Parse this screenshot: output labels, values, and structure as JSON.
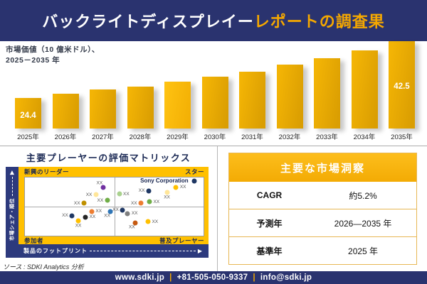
{
  "header": {
    "title_white": "バックライトディスプレイー",
    "title_accent": "レポートの調査果"
  },
  "bar_chart": {
    "label_line1": "市場価値（10 億米ドル）、",
    "label_line2": "2025－2035 年"
  },
  "chart_data": [
    {
      "type": "bar",
      "title": "市場価値（10 億米ドル）、2025－2035 年",
      "categories": [
        "2025年",
        "2026年",
        "2027年",
        "2028年",
        "2029年",
        "2030年",
        "2031年",
        "2032年",
        "2033年",
        "2034年",
        "2035年"
      ],
      "values": [
        24.4,
        25.8,
        27.1,
        28.0,
        29.6,
        31.2,
        32.8,
        35.0,
        37.1,
        39.6,
        42.5
      ],
      "value_labels_shown": {
        "0": "24.4",
        "10": "42.5"
      },
      "ylabel": "10億米ドル",
      "bar_color": "#E3A607",
      "grid": false
    },
    {
      "type": "scatter",
      "title": "主要プレーヤーの評価マトリックス",
      "xlabel": "製品のフットプリント",
      "ylabel": "市場シェア・順位",
      "quadrants": {
        "top_left": "新興のリーダー",
        "top_right": "スター",
        "bottom_left": "参加者",
        "bottom_right": "普及プレーヤー"
      },
      "points": [
        {
          "x": 43.7,
          "y": 16.7,
          "color": "#7030A0",
          "label": "XX",
          "label_pos": "above-left"
        },
        {
          "x": 39.8,
          "y": 29.8,
          "color": "#FFE699",
          "label": "XX",
          "label_pos": "left"
        },
        {
          "x": 33.1,
          "y": 44.0,
          "color": "#BF9000",
          "label": "XX",
          "label_pos": "left"
        },
        {
          "x": 46.1,
          "y": 39.3,
          "color": "#70AD47",
          "label": "XX",
          "label_pos": "left"
        },
        {
          "x": 52.8,
          "y": 28.6,
          "color": "#A9D18E",
          "label": "XX",
          "label_pos": "right"
        },
        {
          "x": 69.3,
          "y": 22.6,
          "color": "#1F3864",
          "label": "XX",
          "label_pos": "left"
        },
        {
          "x": 84.6,
          "y": 16.7,
          "color": "#FFC000",
          "label": "XX",
          "label_pos": "right"
        },
        {
          "x": 79.5,
          "y": 25.0,
          "color": "#FFE699",
          "label": "XX",
          "label_pos": "below"
        },
        {
          "x": 65.0,
          "y": 44.0,
          "color": "#ED7D31",
          "label": "XX",
          "label_pos": "left"
        },
        {
          "x": 69.7,
          "y": 41.7,
          "color": "#70AD47",
          "label": "XX",
          "label_pos": "right"
        },
        {
          "x": 94.9,
          "y": 6.0,
          "color": "#1F3864",
          "label": "Sony Corporation",
          "label_pos": "sony-left"
        },
        {
          "x": 37.4,
          "y": 58.3,
          "color": "#ED7D31",
          "label": "XX",
          "label_pos": "right"
        },
        {
          "x": 48.0,
          "y": 58.3,
          "color": "#2E75B6",
          "label": "XX",
          "label_pos": "below-left"
        },
        {
          "x": 26.4,
          "y": 65.5,
          "color": "#1F3864",
          "label": "XX",
          "label_pos": "left"
        },
        {
          "x": 33.9,
          "y": 67.9,
          "color": "#262626",
          "label": "XX",
          "label_pos": "right"
        },
        {
          "x": 29.9,
          "y": 73.8,
          "color": "#FFC000",
          "label": "XX",
          "label_pos": "below"
        },
        {
          "x": 54.7,
          "y": 56.0,
          "color": "#203864",
          "label": "XX",
          "label_pos": "left"
        },
        {
          "x": 57.5,
          "y": 61.9,
          "color": "#7F7F7F",
          "label": "XX",
          "label_pos": "right"
        },
        {
          "x": 61.8,
          "y": 78.6,
          "color": "#C55A11",
          "label": "XX",
          "label_pos": "below-left"
        },
        {
          "x": 68.9,
          "y": 76.2,
          "color": "#FFC000",
          "label": "XX",
          "label_pos": "right"
        }
      ]
    },
    {
      "type": "table",
      "title": "主要な市場洞察",
      "rows": [
        [
          "CAGR",
          "約5.2%"
        ],
        [
          "予測年",
          "2026—2035 年"
        ],
        [
          "基準年",
          "2025 年"
        ]
      ]
    }
  ],
  "source": "ソース : SDKI Analytics 分析",
  "footer": {
    "website": "www.sdki.jp",
    "phone": "+81-505-050-9337",
    "email": "info@sdki.jp",
    "separator": "|"
  },
  "colors": {
    "navy": "#2A336F",
    "gold_accent": "#F5A800",
    "bar_gold": "#E3A607",
    "frame_yellow": "#FFC000",
    "matrix_navy": "#2D3A7D"
  }
}
